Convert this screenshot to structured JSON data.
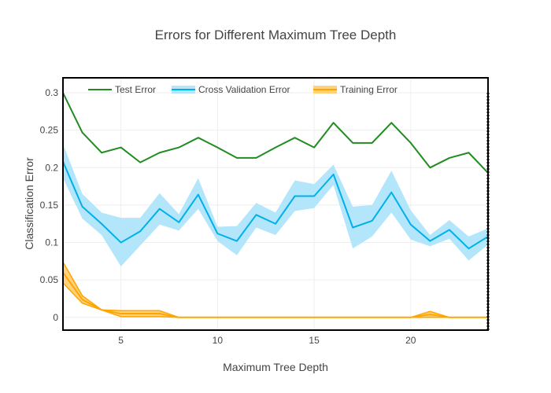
{
  "chart_data": {
    "type": "line",
    "title": "Errors for Different Maximum Tree Depth",
    "xlabel": "Maximum Tree Depth",
    "ylabel": "Classification Error",
    "xlim": [
      2,
      24
    ],
    "ylim": [
      -0.017,
      0.32
    ],
    "x_ticks": [
      5,
      10,
      15,
      20
    ],
    "y_ticks": [
      0,
      0.05,
      0.1,
      0.15,
      0.2,
      0.25,
      0.3
    ],
    "y_tick_labels": [
      "0",
      "0.05",
      "0.1",
      "0.15",
      "0.2",
      "0.25",
      "0.3"
    ],
    "grid": true,
    "legend_position": "top-left",
    "x": [
      2,
      3,
      4,
      5,
      6,
      7,
      8,
      9,
      10,
      11,
      12,
      13,
      14,
      15,
      16,
      17,
      18,
      19,
      20,
      21,
      22,
      23,
      24
    ],
    "series": [
      {
        "name": "Test Error",
        "color": "#228b22",
        "values": [
          0.3,
          0.247,
          0.22,
          0.227,
          0.207,
          0.22,
          0.227,
          0.24,
          0.227,
          0.213,
          0.213,
          0.227,
          0.24,
          0.227,
          0.26,
          0.233,
          0.233,
          0.26,
          0.233,
          0.2,
          0.213,
          0.22,
          0.193
        ]
      },
      {
        "name": "Cross Validation Error",
        "color": "#00b0e8",
        "band_color": "#b3e6fb",
        "values": [
          0.208,
          0.148,
          0.125,
          0.1,
          0.115,
          0.145,
          0.127,
          0.164,
          0.112,
          0.102,
          0.137,
          0.125,
          0.162,
          0.162,
          0.191,
          0.12,
          0.129,
          0.167,
          0.124,
          0.102,
          0.117,
          0.092,
          0.108
        ],
        "lower": [
          0.186,
          0.132,
          0.11,
          0.068,
          0.096,
          0.124,
          0.116,
          0.145,
          0.102,
          0.083,
          0.12,
          0.11,
          0.142,
          0.146,
          0.177,
          0.092,
          0.108,
          0.14,
          0.104,
          0.095,
          0.105,
          0.076,
          0.097
        ],
        "upper": [
          0.232,
          0.165,
          0.14,
          0.133,
          0.133,
          0.166,
          0.138,
          0.186,
          0.121,
          0.122,
          0.153,
          0.14,
          0.183,
          0.178,
          0.204,
          0.148,
          0.15,
          0.196,
          0.143,
          0.11,
          0.13,
          0.108,
          0.119
        ]
      },
      {
        "name": "Training Error",
        "color": "#ffa500",
        "band_color": "#ffd27a",
        "values": [
          0.06,
          0.024,
          0.01,
          0.005,
          0.005,
          0.005,
          0.0,
          0.0,
          0.0,
          0.0,
          0.0,
          0.0,
          0.0,
          0.0,
          0.0,
          0.0,
          0.0,
          0.0,
          0.0,
          0.004,
          0.0,
          0.0,
          0.0
        ],
        "lower": [
          0.046,
          0.019,
          0.01,
          0.001,
          0.001,
          0.001,
          0.0,
          0.0,
          0.0,
          0.0,
          0.0,
          0.0,
          0.0,
          0.0,
          0.0,
          0.0,
          0.0,
          0.0,
          0.0,
          0.0,
          0.0,
          0.0,
          0.0
        ],
        "upper": [
          0.074,
          0.029,
          0.01,
          0.009,
          0.009,
          0.009,
          0.0,
          0.0,
          0.0,
          0.0,
          0.0,
          0.0,
          0.0,
          0.0,
          0.0,
          0.0,
          0.0,
          0.0,
          0.0,
          0.008,
          0.0,
          0.0,
          0.0
        ]
      }
    ]
  }
}
